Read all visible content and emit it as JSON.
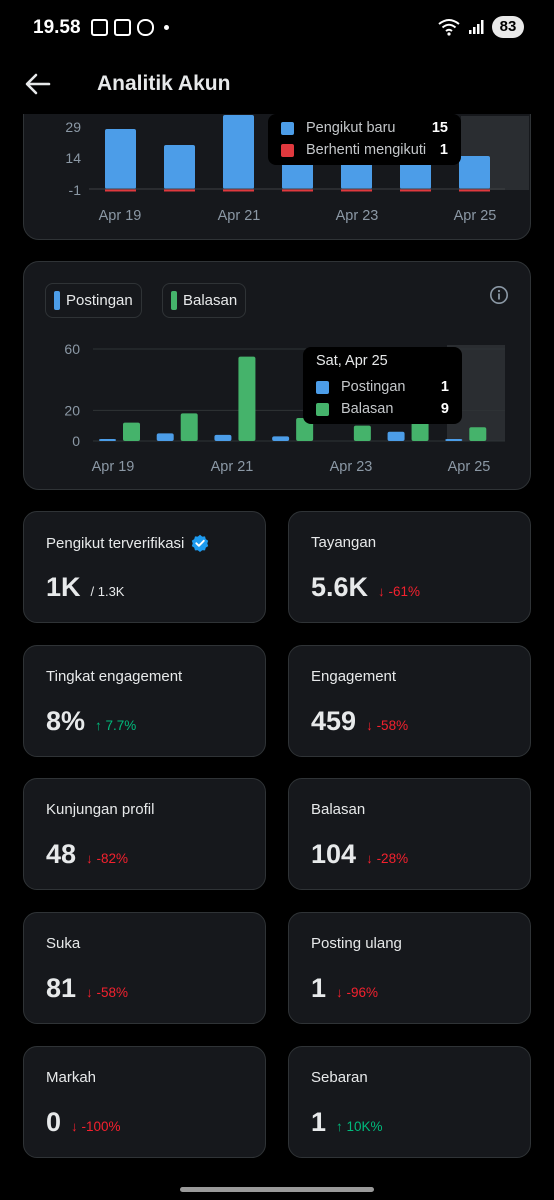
{
  "status_bar": {
    "time": "19.58",
    "battery": "83"
  },
  "header": {
    "title": "Analitik Akun"
  },
  "followers_chart": {
    "y_ticks": [
      "29",
      "14",
      "-1"
    ],
    "x_labels": [
      "Apr 19",
      "Apr 21",
      "Apr 23",
      "Apr 25"
    ],
    "tooltip": {
      "rows": [
        {
          "label": "Pengikut baru",
          "value": "15",
          "color": "#4c9de8"
        },
        {
          "label": "Berhenti mengikuti",
          "value": "1",
          "color": "#e0393e"
        }
      ]
    }
  },
  "chart_data": {
    "type": "bar",
    "categories": [
      "Apr 19",
      "Apr 20",
      "Apr 21",
      "Apr 22",
      "Apr 23",
      "Apr 24",
      "Apr 25"
    ],
    "series": [
      {
        "name": "Postingan",
        "values": [
          1,
          5,
          4,
          3,
          0,
          6,
          1
        ],
        "color": "#4c9de8"
      },
      {
        "name": "Balasan",
        "values": [
          12,
          18,
          55,
          15,
          10,
          12,
          9
        ],
        "color": "#45b36b"
      }
    ],
    "y_ticks": [
      "60",
      "20",
      "0"
    ],
    "x_labels": [
      "Apr 19",
      "Apr 21",
      "Apr 23",
      "Apr 25"
    ],
    "ylim": [
      0,
      60
    ],
    "legend": [
      "Postingan",
      "Balasan"
    ],
    "tooltip": {
      "title": "Sat, Apr 25",
      "rows": [
        {
          "label": "Postingan",
          "value": "1",
          "color": "#4c9de8"
        },
        {
          "label": "Balasan",
          "value": "9",
          "color": "#45b36b"
        }
      ]
    }
  },
  "stats": [
    {
      "label": "Pengikut terverifikasi",
      "value": "1K",
      "sub": "/ 1.3K",
      "delta": "",
      "dir": "",
      "verified": true
    },
    {
      "label": "Tayangan",
      "value": "5.6K",
      "sub": "",
      "delta": "↓ -61%",
      "dir": "down"
    },
    {
      "label": "Tingkat engagement",
      "value": "8%",
      "sub": "",
      "delta": "↑ 7.7%",
      "dir": "up"
    },
    {
      "label": "Engagement",
      "value": "459",
      "sub": "",
      "delta": "↓ -58%",
      "dir": "down"
    },
    {
      "label": "Kunjungan profil",
      "value": "48",
      "sub": "",
      "delta": "↓ -82%",
      "dir": "down"
    },
    {
      "label": "Balasan",
      "value": "104",
      "sub": "",
      "delta": "↓ -28%",
      "dir": "down"
    },
    {
      "label": "Suka",
      "value": "81",
      "sub": "",
      "delta": "↓ -58%",
      "dir": "down"
    },
    {
      "label": "Posting ulang",
      "value": "1",
      "sub": "",
      "delta": "↓ -96%",
      "dir": "down"
    },
    {
      "label": "Markah",
      "value": "0",
      "sub": "",
      "delta": "↓ -100%",
      "dir": "down"
    },
    {
      "label": "Sebaran",
      "value": "1",
      "sub": "",
      "delta": "↑ 10K%",
      "dir": "up"
    }
  ],
  "colors": {
    "blue": "#4c9de8",
    "red": "#e0393e",
    "green": "#45b36b",
    "verified": "#1d9bf0"
  }
}
